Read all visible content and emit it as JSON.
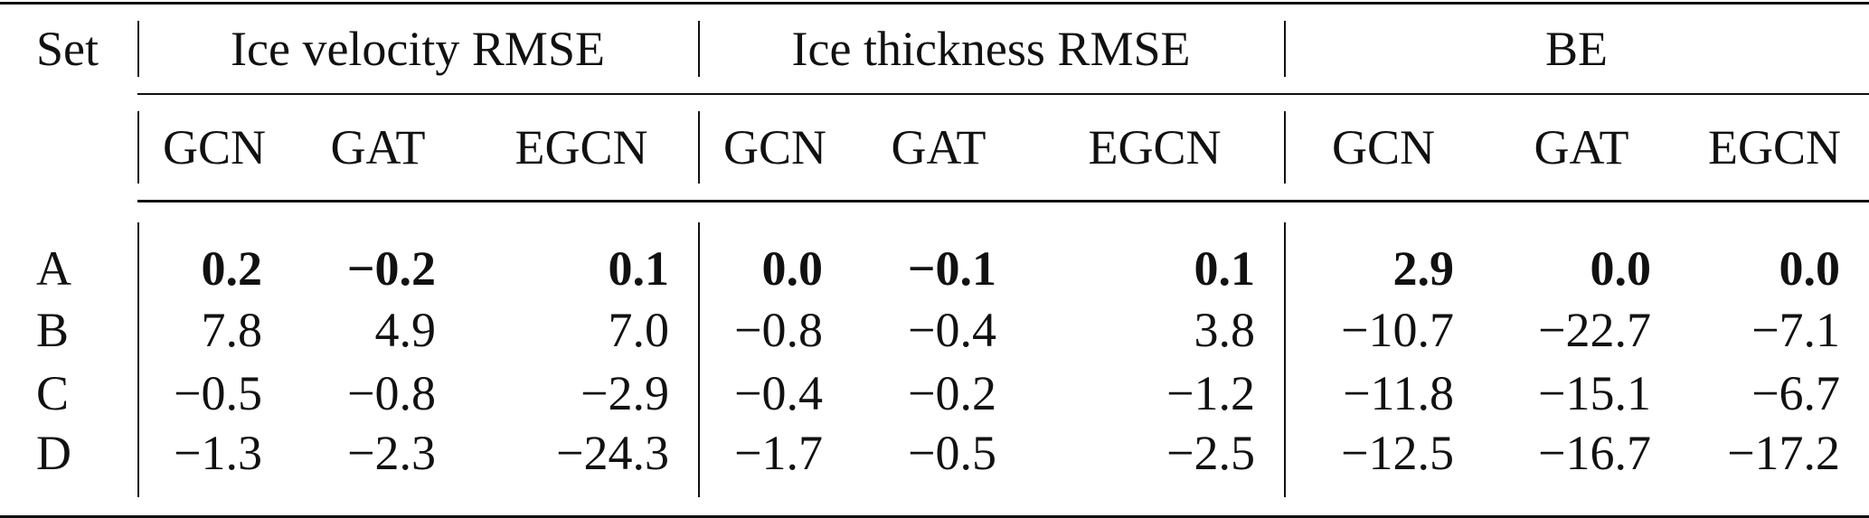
{
  "table": {
    "set_header": "Set",
    "groups": [
      {
        "label": "Ice velocity RMSE"
      },
      {
        "label": "Ice thickness RMSE"
      },
      {
        "label": "BE"
      }
    ],
    "subheaders": [
      "GCN",
      "GAT",
      "EGCN",
      "GCN",
      "GAT",
      "EGCN",
      "GCN",
      "GAT",
      "EGCN"
    ],
    "rows": [
      {
        "set": "A",
        "values": [
          "0.2",
          "−0.2",
          "0.1",
          "0.0",
          "−0.1",
          "0.1",
          "2.9",
          "0.0",
          "0.0"
        ],
        "bold": true
      },
      {
        "set": "B",
        "values": [
          "7.8",
          "4.9",
          "7.0",
          "−0.8",
          "−0.4",
          "3.8",
          "−10.7",
          "−22.7",
          "−7.1"
        ],
        "bold": false
      },
      {
        "set": "C",
        "values": [
          "−0.5",
          "−0.8",
          "−2.9",
          "−0.4",
          "−0.2",
          "−1.2",
          "−11.8",
          "−15.1",
          "−6.7"
        ],
        "bold": false
      },
      {
        "set": "D",
        "values": [
          "−1.3",
          "−2.3",
          "−24.3",
          "−1.7",
          "−0.5",
          "−2.5",
          "−12.5",
          "−16.7",
          "−17.2"
        ],
        "bold": false
      }
    ]
  }
}
